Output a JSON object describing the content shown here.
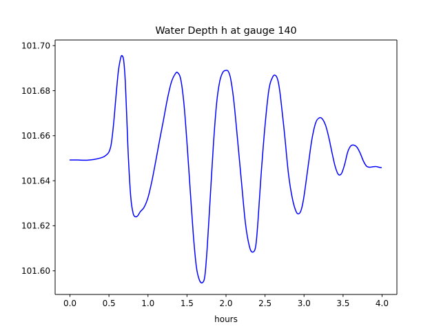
{
  "chart_data": {
    "type": "line",
    "title": "Water Depth h at gauge 140",
    "xlabel": "hours",
    "ylabel": "",
    "xlim": [
      -0.19,
      4.19
    ],
    "ylim": [
      101.5895,
      101.7025
    ],
    "xticks": [
      0.0,
      0.5,
      1.0,
      1.5,
      2.0,
      2.5,
      3.0,
      3.5,
      4.0
    ],
    "xtick_labels": [
      "0.0",
      "0.5",
      "1.0",
      "1.5",
      "2.0",
      "2.5",
      "3.0",
      "3.5",
      "4.0"
    ],
    "yticks": [
      101.6,
      101.62,
      101.64,
      101.66,
      101.68,
      101.7
    ],
    "ytick_labels": [
      "101.60",
      "101.62",
      "101.64",
      "101.66",
      "101.68",
      "101.70"
    ],
    "grid": false,
    "legend": "none",
    "series": [
      {
        "color": "#0000ff",
        "x": [
          0.0,
          0.1,
          0.2,
          0.3,
          0.4,
          0.45,
          0.5,
          0.53,
          0.56,
          0.59,
          0.62,
          0.65,
          0.67,
          0.69,
          0.71,
          0.73,
          0.75,
          0.78,
          0.81,
          0.84,
          0.87,
          0.9,
          0.95,
          1.0,
          1.05,
          1.1,
          1.15,
          1.2,
          1.25,
          1.3,
          1.35,
          1.38,
          1.42,
          1.46,
          1.5,
          1.54,
          1.58,
          1.62,
          1.66,
          1.7,
          1.73,
          1.76,
          1.8,
          1.84,
          1.88,
          1.92,
          1.96,
          2.0,
          2.03,
          2.06,
          2.1,
          2.15,
          2.2,
          2.25,
          2.3,
          2.34,
          2.38,
          2.41,
          2.45,
          2.5,
          2.55,
          2.6,
          2.64,
          2.67,
          2.7,
          2.75,
          2.8,
          2.85,
          2.9,
          2.94,
          2.97,
          3.0,
          3.05,
          3.1,
          3.15,
          3.2,
          3.24,
          3.28,
          3.32,
          3.36,
          3.4,
          3.44,
          3.48,
          3.52,
          3.56,
          3.6,
          3.64,
          3.68,
          3.72,
          3.76,
          3.8,
          3.84,
          3.88,
          3.92,
          3.96,
          3.99
        ],
        "y": [
          101.6492,
          101.6492,
          101.6491,
          101.6494,
          101.6502,
          101.651,
          101.6528,
          101.6565,
          101.6655,
          101.6775,
          101.6885,
          101.6945,
          101.6955,
          101.693,
          101.6835,
          101.6665,
          101.6495,
          101.6325,
          101.6255,
          101.624,
          101.6245,
          101.6262,
          101.6282,
          101.6325,
          101.6398,
          101.6488,
          101.6582,
          101.6672,
          101.6765,
          101.6838,
          101.6875,
          101.688,
          101.685,
          101.6745,
          101.6568,
          101.6365,
          101.6165,
          101.6018,
          101.5958,
          101.5948,
          101.598,
          101.6108,
          101.6338,
          101.6568,
          101.6745,
          101.6842,
          101.6882,
          101.689,
          101.6885,
          101.6852,
          101.6755,
          101.6575,
          101.6388,
          101.6208,
          101.6108,
          101.6083,
          101.6108,
          101.6222,
          101.6428,
          101.6645,
          101.6805,
          101.6862,
          101.6866,
          101.6838,
          101.6768,
          101.6608,
          101.6432,
          101.6322,
          101.6262,
          101.6255,
          101.6278,
          101.6332,
          101.6458,
          101.6582,
          101.6658,
          101.668,
          101.6672,
          101.6642,
          101.6588,
          101.6522,
          101.6462,
          101.6428,
          101.6432,
          101.6472,
          101.6528,
          101.6555,
          101.6558,
          101.6548,
          101.6522,
          101.6488,
          101.6465,
          101.646,
          101.6462,
          101.6463,
          101.646,
          101.6458
        ]
      }
    ]
  }
}
